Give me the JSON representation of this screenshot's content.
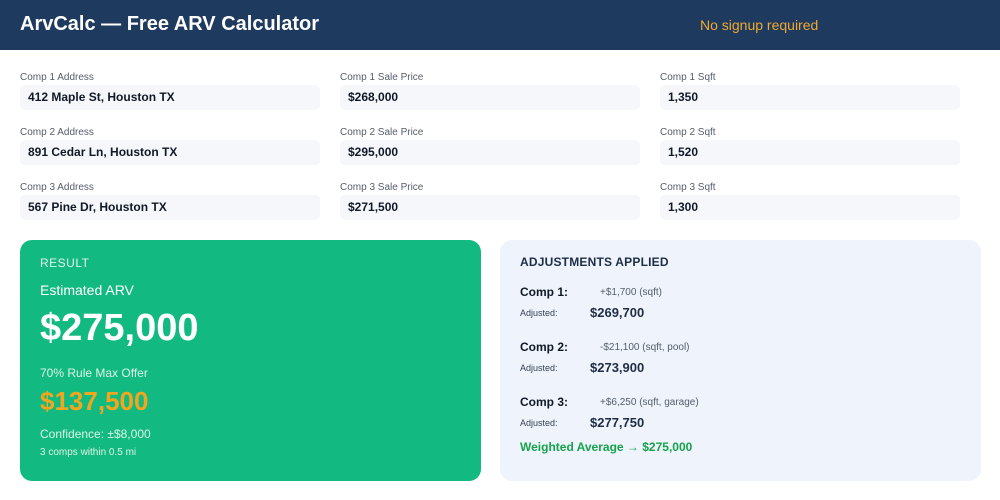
{
  "header": {
    "title": "ArvCalc — Free ARV Calculator",
    "tag": "No signup required"
  },
  "comps": [
    {
      "address_label": "Comp 1 Address",
      "address": "412 Maple St, Houston TX",
      "price_label": "Comp 1 Sale Price",
      "price": "$268,000",
      "sqft_label": "Comp 1 Sqft",
      "sqft": "1,350"
    },
    {
      "address_label": "Comp 2 Address",
      "address": "891 Cedar Ln, Houston TX",
      "price_label": "Comp 2 Sale Price",
      "price": "$295,000",
      "sqft_label": "Comp 2 Sqft",
      "sqft": "1,520"
    },
    {
      "address_label": "Comp 3 Address",
      "address": "567 Pine Dr, Houston TX",
      "price_label": "Comp 3 Sale Price",
      "price": "$271,500",
      "sqft_label": "Comp 3 Sqft",
      "sqft": "1,300"
    }
  ],
  "result": {
    "heading": "RESULT",
    "arv_label": "Estimated ARV",
    "arv_value": "$275,000",
    "offer_label": "70% Rule Max Offer",
    "offer_value": "$137,500",
    "confidence": "Confidence: ±$8,000",
    "comps_note": "3 comps within 0.5 mi"
  },
  "adjustments": {
    "heading": "ADJUSTMENTS APPLIED",
    "items": [
      {
        "name": "Comp 1:",
        "delta": "+$1,700 (sqft)",
        "label": "Adjusted:",
        "value": "$269,700"
      },
      {
        "name": "Comp 2:",
        "delta": "-$21,100 (sqft, pool)",
        "label": "Adjusted:",
        "value": "$273,900"
      },
      {
        "name": "Comp 3:",
        "delta": "+$6,250 (sqft, garage)",
        "label": "Adjusted:",
        "value": "$277,750"
      }
    ],
    "weighted": "Weighted Average → $275,000"
  },
  "colors": {
    "header_bg": "#1f3a5f",
    "accent_orange": "#f2a61e",
    "result_green": "#12b981",
    "weighted_green": "#16a34a",
    "adj_bg": "#eef3fc"
  }
}
